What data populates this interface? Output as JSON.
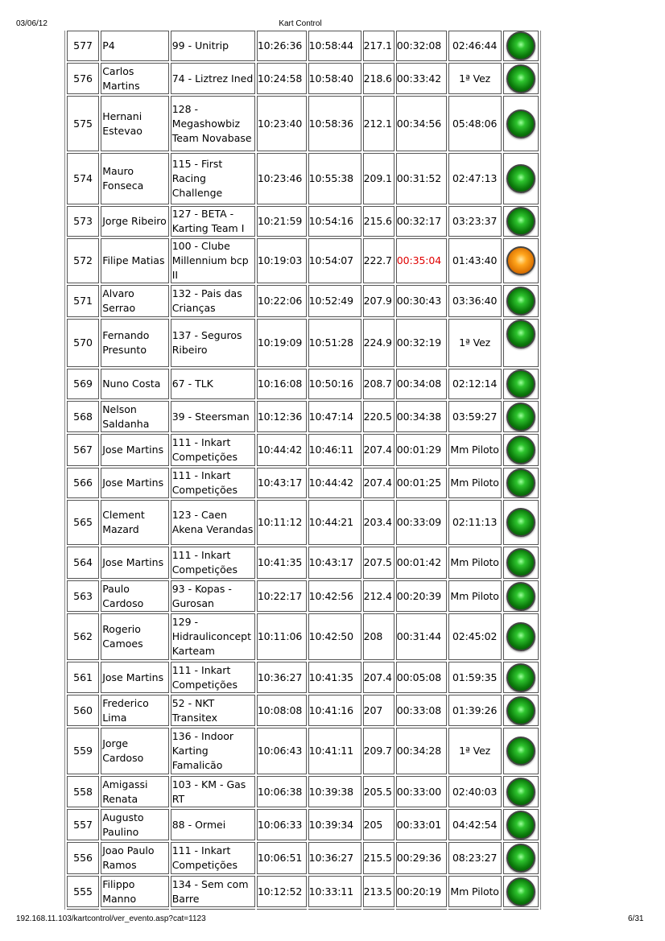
{
  "header": {
    "date": "03/06/12",
    "title": "Kart Control"
  },
  "footer": {
    "url": "192.168.11.103/kartcontrol/ver_evento.asp?cat=1123",
    "page": "6/31"
  },
  "colors": {
    "green_light": "#1fa51f",
    "orange_light": "#ff9a10",
    "alert_text": "#e00000"
  },
  "rows": [
    {
      "id": "577",
      "pilot": "P4",
      "team": "99 - Unitrip",
      "start": "10:26:36",
      "end": "10:58:44",
      "speed": "217.1",
      "time": "00:32:08",
      "last": "02:46:44",
      "light": "green"
    },
    {
      "id": "576",
      "pilot": "Carlos Martins",
      "team": "74 - Liztrez Ined",
      "start": "10:24:58",
      "end": "10:58:40",
      "speed": "218.6",
      "time": "00:33:42",
      "last": "1ª Vez",
      "light": "green"
    },
    {
      "id": "575",
      "pilot": "Hernani Estevao",
      "team": "128 - Megashowbiz Team Novabase",
      "start": "10:23:40",
      "end": "10:58:36",
      "speed": "212.1",
      "time": "00:34:56",
      "last": "05:48:06",
      "light": "green"
    },
    {
      "id": "574",
      "pilot": "Mauro Fonseca",
      "team": "115 - First Racing Challenge",
      "start": "10:23:46",
      "end": "10:55:38",
      "speed": "209.1",
      "time": "00:31:52",
      "last": "02:47:13",
      "light": "green"
    },
    {
      "id": "573",
      "pilot": "Jorge Ribeiro",
      "team": "127 - BETA - Karting Team I",
      "start": "10:21:59",
      "end": "10:54:16",
      "speed": "215.6",
      "time": "00:32:17",
      "last": "03:23:37",
      "light": "green"
    },
    {
      "id": "572",
      "pilot": "Filipe Matias",
      "team": "100 - Clube Millennium bcp II",
      "start": "10:19:03",
      "end": "10:54:07",
      "speed": "222.7",
      "time": "00:35:04",
      "last": "01:43:40",
      "light": "orange",
      "time_alert": true
    },
    {
      "id": "571",
      "pilot": "Alvaro Serrao",
      "team": "132 - Pais das Crianças",
      "start": "10:22:06",
      "end": "10:52:49",
      "speed": "207.9",
      "time": "00:30:43",
      "last": "03:36:40",
      "light": "green"
    },
    {
      "id": "570",
      "pilot": "Fernando Presunto",
      "team": "137 - Seguros Ribeiro",
      "start": "10:19:09",
      "end": "10:51:28",
      "speed": "224.9",
      "time": "00:32:19",
      "last": "1ª Vez",
      "light": "green"
    },
    {
      "id": "569",
      "pilot": "Nuno Costa",
      "team": "67 - TLK",
      "start": "10:16:08",
      "end": "10:50:16",
      "speed": "208.7",
      "time": "00:34:08",
      "last": "02:12:14",
      "light": "green"
    },
    {
      "id": "568",
      "pilot": "Nelson Saldanha",
      "team": "39 - Steersman",
      "start": "10:12:36",
      "end": "10:47:14",
      "speed": "220.5",
      "time": "00:34:38",
      "last": "03:59:27",
      "light": "green"
    },
    {
      "id": "567",
      "pilot": "Jose Martins",
      "team": "111 - Inkart Competições",
      "start": "10:44:42",
      "end": "10:46:11",
      "speed": "207.4",
      "time": "00:01:29",
      "last": "Mm Piloto",
      "light": "green"
    },
    {
      "id": "566",
      "pilot": "Jose Martins",
      "team": "111 - Inkart Competições",
      "start": "10:43:17",
      "end": "10:44:42",
      "speed": "207.4",
      "time": "00:01:25",
      "last": "Mm Piloto",
      "light": "green"
    },
    {
      "id": "565",
      "pilot": "Clement Mazard",
      "team": "123 - Caen Akena Verandas",
      "start": "10:11:12",
      "end": "10:44:21",
      "speed": "203.4",
      "time": "00:33:09",
      "last": "02:11:13",
      "light": "green"
    },
    {
      "id": "564",
      "pilot": "Jose Martins",
      "team": "111 - Inkart Competições",
      "start": "10:41:35",
      "end": "10:43:17",
      "speed": "207.5",
      "time": "00:01:42",
      "last": "Mm Piloto",
      "light": "green"
    },
    {
      "id": "563",
      "pilot": "Paulo Cardoso",
      "team": "93 - Kopas - Gurosan",
      "start": "10:22:17",
      "end": "10:42:56",
      "speed": "212.4",
      "time": "00:20:39",
      "last": "Mm Piloto",
      "light": "green"
    },
    {
      "id": "562",
      "pilot": "Rogerio Camoes",
      "team": "129 - Hidrauliconcept Karteam",
      "start": "10:11:06",
      "end": "10:42:50",
      "speed": "208",
      "time": "00:31:44",
      "last": "02:45:02",
      "light": "green"
    },
    {
      "id": "561",
      "pilot": "Jose Martins",
      "team": "111 - Inkart Competições",
      "start": "10:36:27",
      "end": "10:41:35",
      "speed": "207.4",
      "time": "00:05:08",
      "last": "01:59:35",
      "light": "green"
    },
    {
      "id": "560",
      "pilot": "Frederico Lima",
      "team": "52 - NKT Transitex",
      "start": "10:08:08",
      "end": "10:41:16",
      "speed": "207",
      "time": "00:33:08",
      "last": "01:39:26",
      "light": "green"
    },
    {
      "id": "559",
      "pilot": "Jorge Cardoso",
      "team": "136 - Indoor Karting Famalicão",
      "start": "10:06:43",
      "end": "10:41:11",
      "speed": "209.7",
      "time": "00:34:28",
      "last": "1ª Vez",
      "light": "green"
    },
    {
      "id": "558",
      "pilot": "Amigassi Renata",
      "team": "103 - KM - Gas RT",
      "start": "10:06:38",
      "end": "10:39:38",
      "speed": "205.5",
      "time": "00:33:00",
      "last": "02:40:03",
      "light": "green"
    },
    {
      "id": "557",
      "pilot": "Augusto Paulino",
      "team": "88 - Ormei",
      "start": "10:06:33",
      "end": "10:39:34",
      "speed": "205",
      "time": "00:33:01",
      "last": "04:42:54",
      "light": "green"
    },
    {
      "id": "556",
      "pilot": "Joao Paulo Ramos",
      "team": "111 - Inkart Competições",
      "start": "10:06:51",
      "end": "10:36:27",
      "speed": "215.5",
      "time": "00:29:36",
      "last": "08:23:27",
      "light": "green"
    },
    {
      "id": "555",
      "pilot": "Filippo Manno",
      "team": "134 - Sem com Barre",
      "start": "10:12:52",
      "end": "10:33:11",
      "speed": "213.5",
      "time": "00:20:19",
      "last": "Mm Piloto",
      "light": "green"
    }
  ]
}
